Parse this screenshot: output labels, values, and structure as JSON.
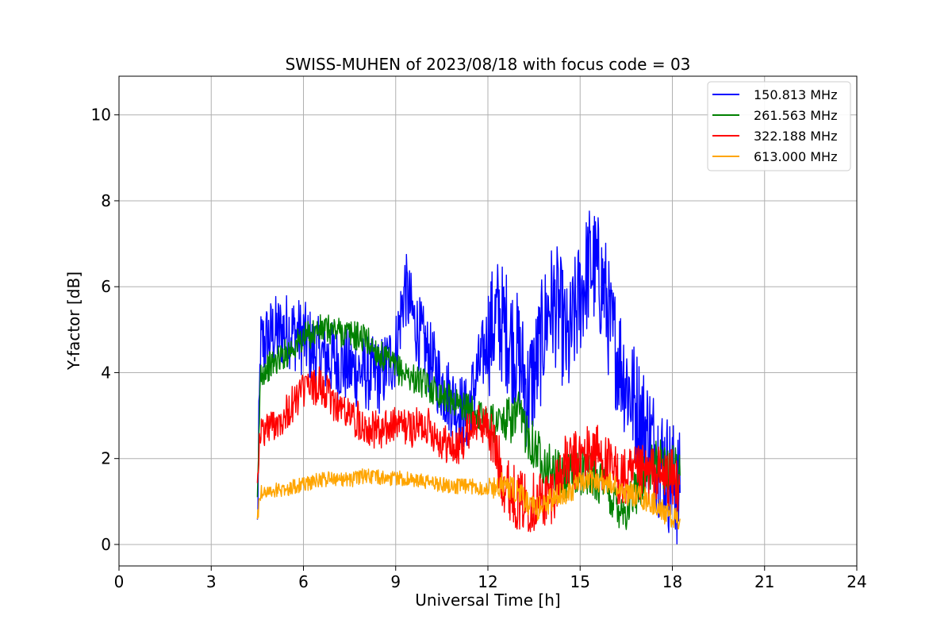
{
  "chart_data": {
    "type": "line",
    "title": "SWISS-MUHEN of 2023/08/18 with focus code = 03",
    "xlabel": "Universal Time [h]",
    "ylabel": "Y-factor [dB]",
    "xlim": [
      0,
      24
    ],
    "ylim": [
      -0.5,
      10.9
    ],
    "xticks": [
      0,
      3,
      6,
      9,
      12,
      15,
      18,
      21,
      24
    ],
    "yticks": [
      0,
      2,
      4,
      6,
      8,
      10
    ],
    "grid": true,
    "legend_position": "top-right",
    "series": [
      {
        "name": "150.813 MHz",
        "color": "#0000ff",
        "x": [
          4.5,
          4.6,
          5.0,
          5.5,
          6.0,
          6.5,
          7.0,
          7.5,
          8.0,
          8.5,
          9.0,
          9.3,
          9.6,
          10.0,
          10.3,
          10.6,
          11.0,
          11.3,
          11.6,
          12.0,
          12.3,
          12.6,
          13.0,
          13.3,
          13.6,
          14.0,
          14.3,
          14.6,
          14.8,
          15.0,
          15.3,
          15.5,
          15.8,
          16.0,
          16.3,
          16.6,
          17.0,
          17.3,
          17.6,
          18.0,
          18.25
        ],
        "values": [
          0.3,
          4.6,
          4.9,
          5.0,
          4.8,
          4.4,
          4.3,
          4.1,
          4.0,
          3.9,
          4.5,
          6.0,
          5.2,
          4.5,
          4.0,
          3.6,
          3.2,
          3.0,
          3.8,
          4.8,
          5.3,
          5.0,
          4.4,
          3.5,
          4.2,
          5.6,
          5.5,
          4.5,
          5.2,
          5.8,
          6.5,
          6.4,
          5.9,
          4.9,
          4.3,
          3.6,
          2.9,
          2.4,
          2.0,
          1.5,
          1.2
        ]
      },
      {
        "name": "261.563 MHz",
        "color": "#008000",
        "x": [
          4.5,
          4.6,
          5.0,
          5.5,
          6.0,
          6.5,
          7.0,
          7.5,
          8.0,
          8.5,
          9.0,
          9.5,
          10.0,
          10.5,
          11.0,
          11.5,
          12.0,
          12.5,
          13.0,
          13.5,
          14.0,
          14.5,
          15.0,
          15.5,
          16.0,
          16.5,
          17.0,
          17.5,
          18.0,
          18.25
        ],
        "values": [
          0.8,
          4.0,
          4.2,
          4.5,
          4.8,
          5.0,
          5.0,
          4.9,
          4.8,
          4.4,
          4.1,
          3.9,
          3.7,
          3.5,
          3.3,
          3.1,
          2.9,
          2.8,
          3.0,
          2.3,
          1.8,
          1.5,
          1.7,
          1.6,
          1.1,
          0.8,
          1.5,
          1.9,
          1.8,
          1.6
        ]
      },
      {
        "name": "322.188 MHz",
        "color": "#ff0000",
        "x": [
          4.5,
          4.6,
          5.0,
          5.5,
          6.0,
          6.5,
          7.0,
          7.5,
          8.0,
          8.5,
          9.0,
          9.5,
          10.0,
          10.5,
          11.0,
          11.5,
          12.0,
          12.5,
          13.0,
          13.5,
          14.0,
          14.5,
          15.0,
          15.5,
          16.0,
          16.5,
          17.0,
          17.5,
          18.0,
          18.25
        ],
        "values": [
          1.7,
          2.6,
          2.8,
          3.1,
          3.6,
          3.7,
          3.3,
          3.0,
          2.8,
          2.6,
          2.8,
          2.7,
          2.8,
          2.4,
          2.2,
          2.8,
          2.8,
          1.5,
          1.0,
          1.0,
          1.1,
          1.8,
          2.0,
          2.2,
          1.7,
          1.5,
          1.6,
          1.6,
          1.5,
          1.4
        ]
      },
      {
        "name": "613.000 MHz",
        "color": "#ffa500",
        "x": [
          4.5,
          4.6,
          5.0,
          5.5,
          6.0,
          6.5,
          7.0,
          7.5,
          8.0,
          8.5,
          9.0,
          9.5,
          10.0,
          10.5,
          11.0,
          11.5,
          12.0,
          12.5,
          13.0,
          13.5,
          14.0,
          14.5,
          15.0,
          15.5,
          16.0,
          16.5,
          17.0,
          17.5,
          18.0,
          18.25
        ],
        "values": [
          0.6,
          1.2,
          1.25,
          1.3,
          1.4,
          1.5,
          1.55,
          1.5,
          1.6,
          1.55,
          1.55,
          1.5,
          1.45,
          1.4,
          1.35,
          1.35,
          1.3,
          1.4,
          1.2,
          0.8,
          1.0,
          1.2,
          1.4,
          1.5,
          1.4,
          1.2,
          1.1,
          0.9,
          0.6,
          0.6
        ]
      }
    ]
  }
}
